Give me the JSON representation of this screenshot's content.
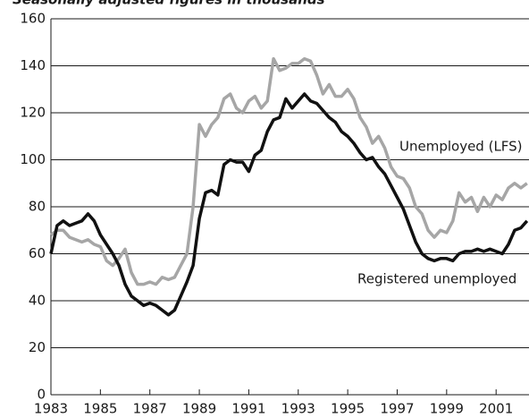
{
  "chart_data": {
    "type": "line",
    "title": "Seasonally adjusted figures in thousands",
    "annotations": [
      "Unemployed (LFS)",
      "Registered unemployed"
    ],
    "x": [
      1983,
      1983.25,
      1983.5,
      1983.75,
      1984,
      1984.25,
      1984.5,
      1984.75,
      1985,
      1985.25,
      1985.5,
      1985.75,
      1986,
      1986.25,
      1986.5,
      1986.75,
      1987,
      1987.25,
      1987.5,
      1987.75,
      1988,
      1988.25,
      1988.5,
      1988.75,
      1989,
      1989.25,
      1989.5,
      1989.75,
      1990,
      1990.25,
      1990.5,
      1990.75,
      1991,
      1991.25,
      1991.5,
      1991.75,
      1992,
      1992.25,
      1992.5,
      1992.75,
      1993,
      1993.25,
      1993.5,
      1993.75,
      1994,
      1994.25,
      1994.5,
      1994.75,
      1995,
      1995.25,
      1995.5,
      1995.75,
      1996,
      1996.25,
      1996.5,
      1996.75,
      1997,
      1997.25,
      1997.5,
      1997.75,
      1998,
      1998.25,
      1998.5,
      1998.75,
      1999,
      1999.25,
      1999.5,
      1999.75,
      2000,
      2000.25,
      2000.5,
      2000.75,
      2001,
      2001.25,
      2001.5,
      2001.75,
      2002,
      2002.25
    ],
    "series": [
      {
        "name": "Unemployed (LFS)",
        "color": "#a6a6a6",
        "values": [
          68,
          70,
          70,
          67,
          66,
          65,
          66,
          64,
          63,
          57,
          55,
          58,
          62,
          52,
          47,
          47,
          48,
          47,
          50,
          49,
          50,
          55,
          60,
          80,
          115,
          110,
          115,
          118,
          126,
          128,
          122,
          120,
          125,
          127,
          122,
          125,
          143,
          138,
          139,
          141,
          141,
          143,
          142,
          136,
          128,
          132,
          127,
          127,
          130,
          126,
          118,
          114,
          107,
          110,
          105,
          97,
          93,
          92,
          88,
          80,
          77,
          70,
          67,
          70,
          69,
          74,
          86,
          82,
          84,
          78,
          84,
          80,
          85,
          83,
          88,
          90,
          88,
          90
        ]
      },
      {
        "name": "Registered unemployed",
        "color": "#111111",
        "values": [
          60,
          72,
          74,
          72,
          73,
          74,
          77,
          74,
          68,
          64,
          60,
          55,
          47,
          42,
          40,
          38,
          39,
          38,
          36,
          34,
          36,
          42,
          48,
          55,
          75,
          86,
          87,
          85,
          98,
          100,
          99,
          99,
          95,
          102,
          104,
          112,
          117,
          118,
          126,
          122,
          125,
          128,
          125,
          124,
          121,
          118,
          116,
          112,
          110,
          107,
          103,
          100,
          101,
          97,
          94,
          89,
          84,
          79,
          72,
          65,
          60,
          58,
          57,
          58,
          58,
          57,
          60,
          61,
          61,
          62,
          61,
          62,
          61,
          60,
          64,
          70,
          71,
          74
        ]
      }
    ],
    "xlim": [
      1983,
      2002.33
    ],
    "xticks": [
      1983,
      1985,
      1987,
      1989,
      1991,
      1993,
      1995,
      1997,
      1999,
      2001
    ],
    "ylim": [
      0,
      160
    ],
    "yticks": [
      0,
      20,
      40,
      60,
      80,
      100,
      120,
      140,
      160
    ],
    "grid": true
  }
}
